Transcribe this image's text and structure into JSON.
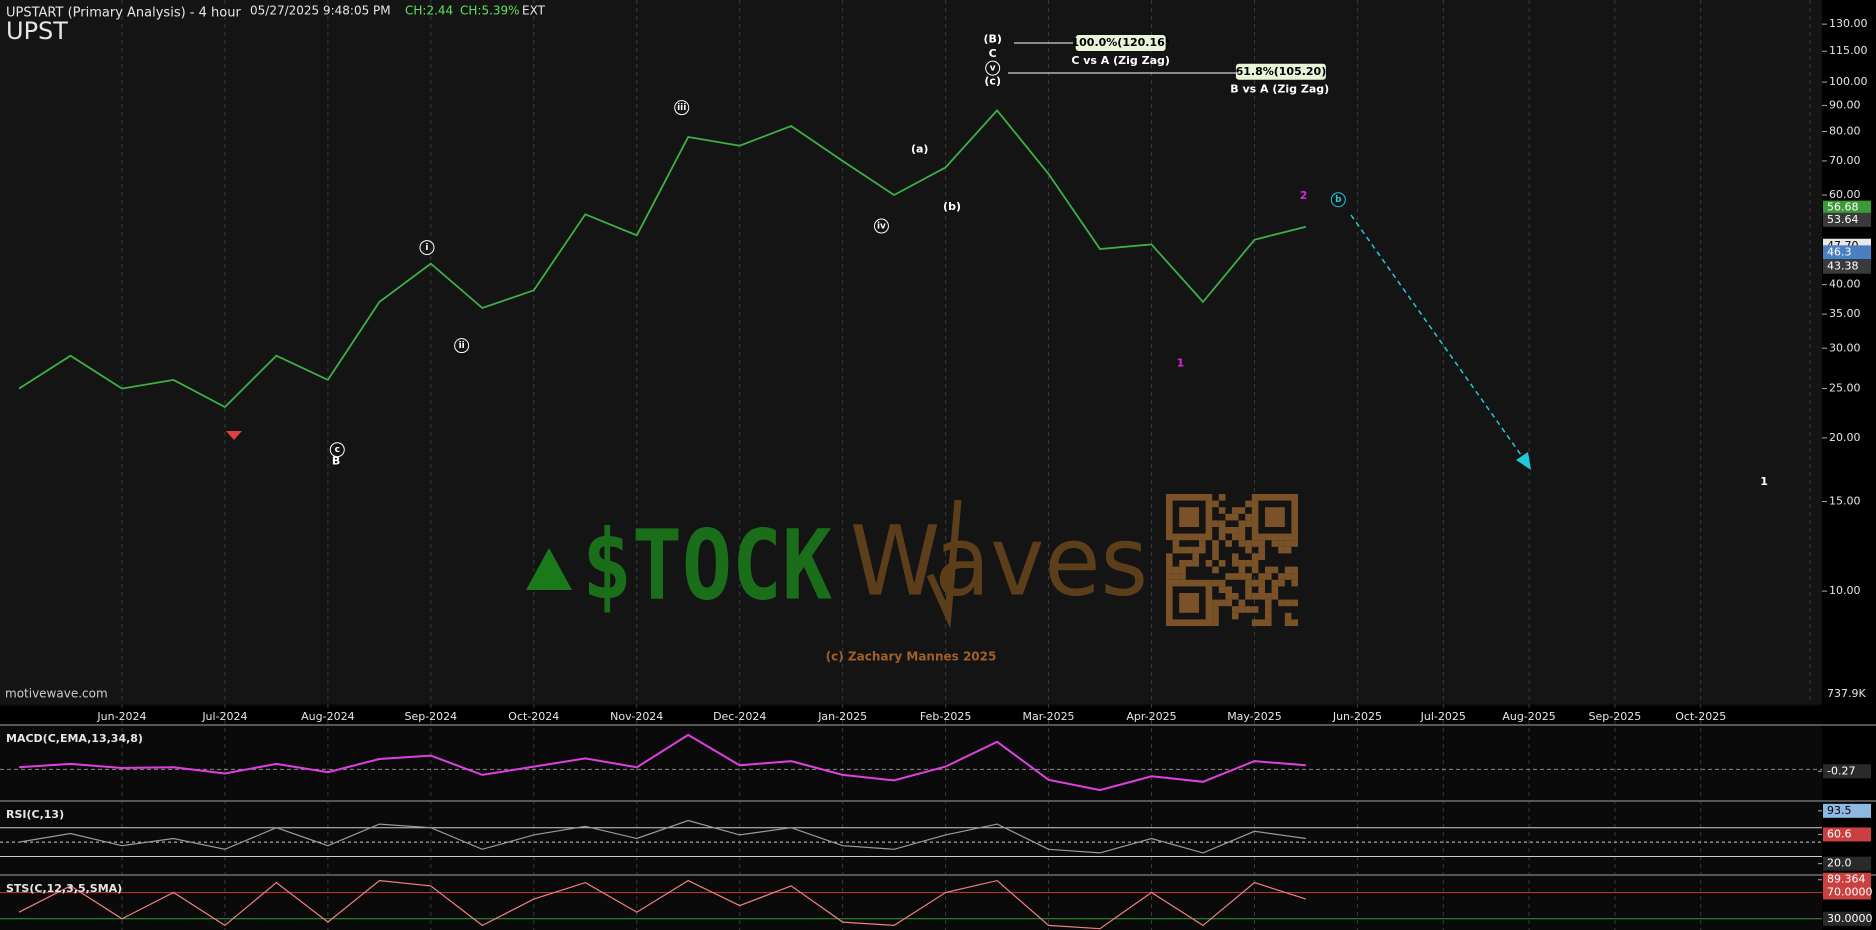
{
  "chart_data": [
    {
      "type": "line",
      "title": "UPSTART (Primary Analysis) - 4 hour",
      "ticker": "UPST",
      "timestamp": "05/27/2025 9:48:05 PM",
      "change": "CH:2.44",
      "change_percent": "CH:5.39%",
      "session": "EXT",
      "source": "motivewave.com",
      "copyright": "(c) Zachary Mannes 2025",
      "logo": [
        "$TOCK",
        "Waves"
      ],
      "categories": [
        null,
        null,
        "Jun-2024",
        null,
        "Jul-2024",
        null,
        "Aug-2024",
        null,
        "Sep-2024",
        null,
        "Oct-2024",
        null,
        "Nov-2024",
        null,
        "Dec-2024",
        null,
        "Jan-2025",
        null,
        "Feb-2025",
        null,
        "Mar-2025",
        null,
        "Apr-2025",
        null,
        "May-2025",
        null,
        "Jun-2025",
        null,
        "Jul-2025",
        null,
        "Aug-2025",
        null,
        "Sep-2025",
        null,
        "Oct-2025"
      ],
      "values": [
        25,
        29,
        25,
        26,
        23,
        29,
        26,
        37,
        44,
        36,
        39,
        55,
        50,
        78,
        75,
        82,
        70,
        60,
        68,
        88,
        66,
        47,
        48,
        37,
        49,
        52,
        null,
        null,
        null,
        null,
        null,
        null,
        null,
        null,
        null
      ],
      "color": "#3cb043",
      "log_scale": true,
      "ylim": [
        6,
        145
      ],
      "yticks": [
        {
          "value": 10,
          "label": "10.00"
        },
        {
          "value": 15,
          "label": "15.00"
        },
        {
          "value": 20,
          "label": "20.00"
        },
        {
          "value": 25,
          "label": "25.00"
        },
        {
          "value": 30,
          "label": "30.00"
        },
        {
          "value": 35,
          "label": "35.00"
        },
        {
          "value": 40,
          "label": "40.00"
        },
        {
          "value": 60,
          "label": "60.00"
        },
        {
          "value": 70,
          "label": "70.00"
        },
        {
          "value": 80,
          "label": "80.00"
        },
        {
          "value": 90,
          "label": "90.00"
        },
        {
          "value": 100,
          "label": "100.00"
        },
        {
          "value": 115,
          "label": "115.00"
        },
        {
          "value": 130,
          "label": "130.00"
        }
      ],
      "volume_label": "737.9K",
      "price_markers": [
        {
          "value": 56.68,
          "label": "56.68",
          "color": "#3a9a3a"
        },
        {
          "value": 53.64,
          "label": "53.64",
          "color": "#3a3a3a"
        },
        {
          "value": 47.7,
          "label": "47.70",
          "color": "#e8e8e8"
        },
        {
          "value": 46.3,
          "label": "46.3",
          "color": "#4a7fc0"
        },
        {
          "value": 43.38,
          "label": "43.38",
          "color": "#3a3a3a"
        }
      ],
      "annotations": [
        {
          "text": "(B)",
          "color": "#ffffff"
        },
        {
          "text": "C",
          "color": "#ffffff"
        },
        {
          "text": "v",
          "color": "#ffffff",
          "circled": true
        },
        {
          "text": "(c)",
          "color": "#ffffff"
        },
        {
          "text": "100.0%(120.16)",
          "color": "#000000",
          "boxed": true
        },
        {
          "text": "C vs A (Zig Zag)",
          "color": "#ffffff"
        },
        {
          "text": "61.8%(105.20)",
          "color": "#000000",
          "boxed": true
        },
        {
          "text": "B vs A (Zig Zag)",
          "color": "#ffffff"
        },
        {
          "text": "iii",
          "color": "#ffffff",
          "circled": true
        },
        {
          "text": "i",
          "color": "#ffffff",
          "circled": true
        },
        {
          "text": "ii",
          "color": "#ffffff",
          "circled": true
        },
        {
          "text": "(a)",
          "color": "#ffffff"
        },
        {
          "text": "(b)",
          "color": "#ffffff"
        },
        {
          "text": "iv",
          "color": "#ffffff",
          "circled": true
        },
        {
          "text": "c",
          "color": "#ffffff",
          "circled": true
        },
        {
          "text": "B",
          "color": "#ffffff"
        },
        {
          "text": "1",
          "color": "#e020e0"
        },
        {
          "text": "2",
          "color": "#e020e0"
        },
        {
          "text": "b",
          "color": "#22c8d8",
          "circled": true
        },
        {
          "text": "1",
          "color": "#ffffff"
        }
      ]
    },
    {
      "type": "line",
      "title": "MACD(C,EMA,13,34,8)",
      "color": "#e040e0",
      "values": [
        0.3,
        0.8,
        0.2,
        0.3,
        -0.6,
        0.8,
        -0.4,
        1.5,
        2,
        -0.8,
        0.4,
        1.6,
        0.3,
        5,
        0.6,
        1.2,
        -0.8,
        -1.6,
        0.4,
        4,
        -1.5,
        -3,
        -1,
        -1.8,
        1.2,
        0.6,
        null,
        null,
        null,
        null,
        null,
        null,
        null,
        null,
        null
      ],
      "ylim": [
        -4,
        6
      ],
      "yticks": [
        {
          "value": -0.27,
          "label": "-0.27"
        }
      ],
      "tick_colors": [
        "#2a2a2a"
      ]
    },
    {
      "type": "line",
      "title": "RSI(C,13)",
      "color": "#9a9a9a",
      "values": [
        50,
        62,
        45,
        55,
        40,
        70,
        45,
        75,
        70,
        40,
        60,
        72,
        55,
        80,
        60,
        70,
        45,
        40,
        60,
        75,
        40,
        35,
        55,
        35,
        65,
        55,
        null,
        null,
        null,
        null,
        null,
        null,
        null,
        null,
        null
      ],
      "ylim": [
        7,
        103
      ],
      "yticks": [
        {
          "value": 93.5,
          "label": "93.5"
        },
        {
          "value": 60.6,
          "label": "60.6"
        },
        {
          "value": 20,
          "label": "20.0"
        }
      ],
      "tick_colors": [
        "#8fb8e0",
        "#c84040",
        "#2a2a2a"
      ],
      "levels": [
        70,
        50,
        30
      ]
    },
    {
      "type": "line",
      "title": "STS(C,12,3,5,SMA)",
      "color": "#f08080",
      "values": [
        40,
        80,
        30,
        70,
        20,
        85,
        25,
        88,
        80,
        20,
        60,
        85,
        40,
        88,
        50,
        80,
        25,
        20,
        70,
        88,
        20,
        15,
        70,
        20,
        85,
        60,
        null,
        null,
        null,
        null,
        null,
        null,
        null,
        null,
        null
      ],
      "ylim": [
        13,
        92
      ],
      "yticks": [
        {
          "value": 89.364,
          "label": "89.364"
        },
        {
          "value": 70,
          "label": "70.0000"
        },
        {
          "value": 30,
          "label": "30.0000"
        }
      ],
      "tick_colors": [
        "#c84040",
        "#c84040",
        "#2a2a2a"
      ],
      "tick_lines": [
        null,
        "#c03030",
        "#2e9e2e"
      ]
    }
  ]
}
